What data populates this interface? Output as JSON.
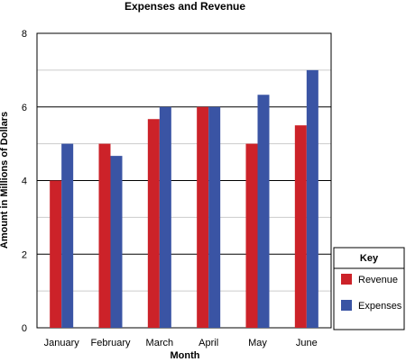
{
  "chart_data": {
    "type": "bar",
    "title": "Expenses and Revenue",
    "xlabel": "Month",
    "ylabel": "Amount in Millions of Dollars",
    "categories": [
      "January",
      "February",
      "March",
      "April",
      "May",
      "June"
    ],
    "series": [
      {
        "name": "Revenue",
        "values": [
          4,
          5,
          5.67,
          6,
          5,
          5.5
        ],
        "color": "#cc2229"
      },
      {
        "name": "Expenses",
        "values": [
          5,
          4.67,
          6,
          6,
          6.33,
          7
        ],
        "color": "#3a54a4"
      }
    ],
    "ylim": [
      0,
      8
    ],
    "yticks": [
      0,
      2,
      4,
      6,
      8
    ],
    "grid": "horizontal",
    "legend": {
      "title": "Key",
      "placement": "right",
      "entries": [
        "Revenue",
        "Expenses"
      ]
    }
  }
}
